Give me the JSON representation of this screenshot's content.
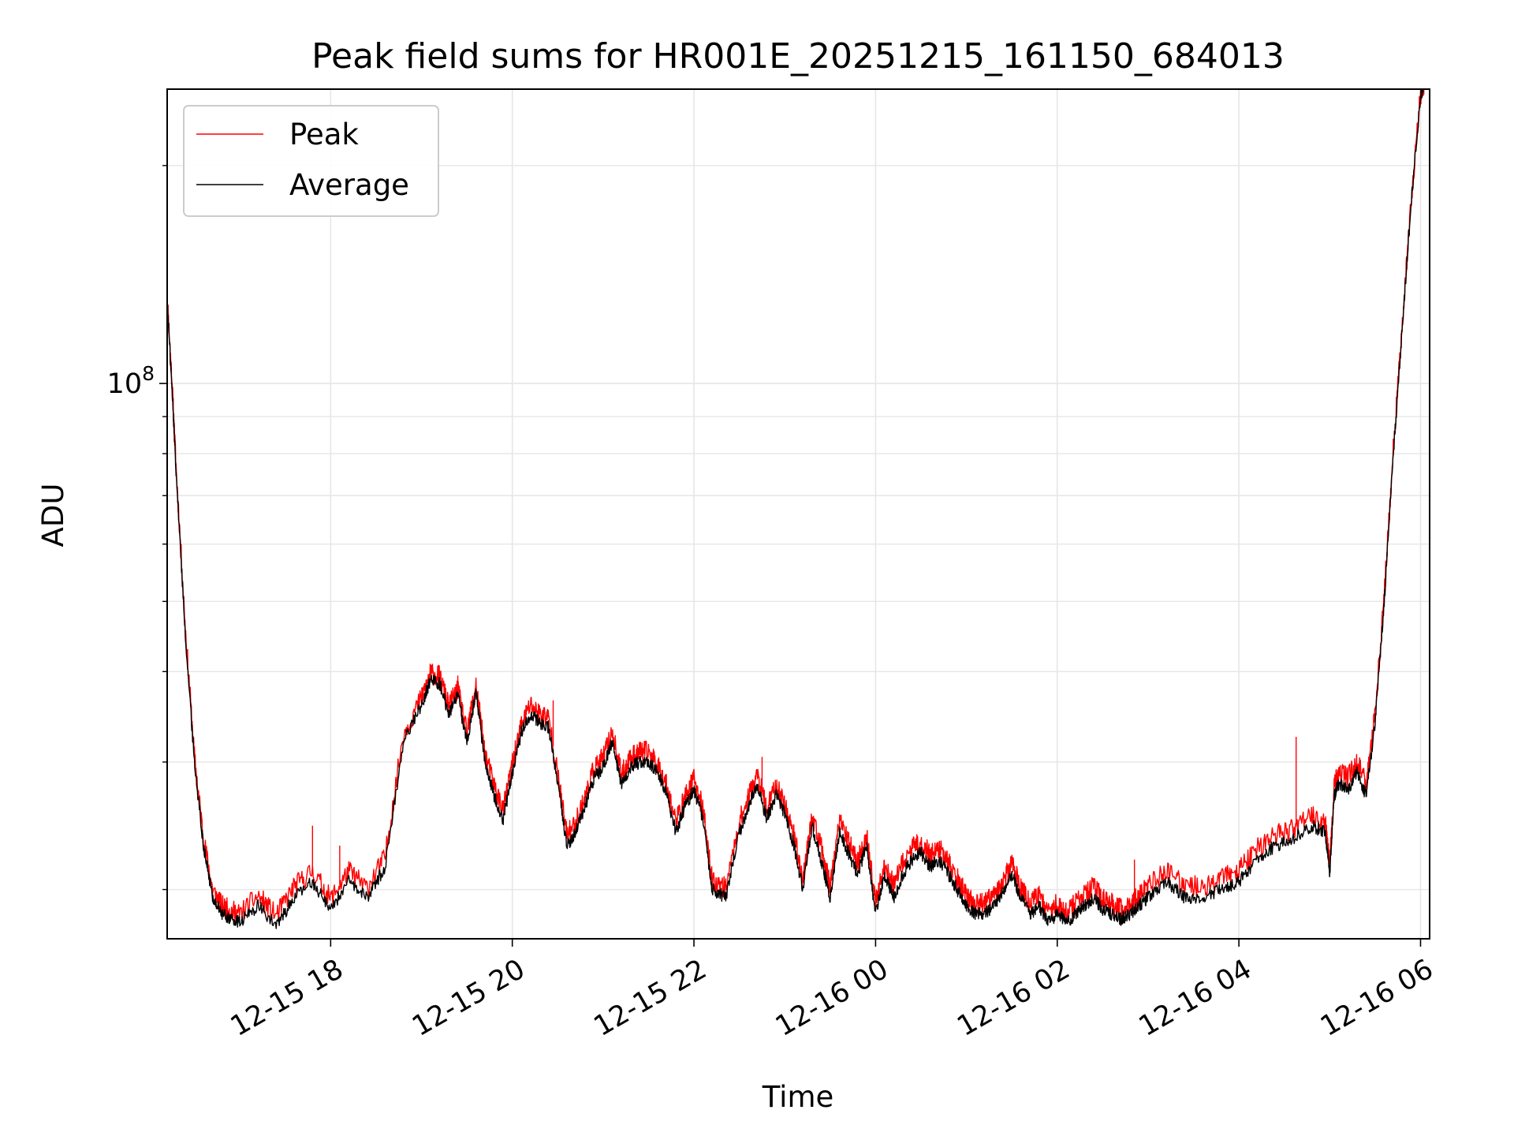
{
  "chart_data": {
    "type": "line",
    "title": "Peak field sums for HR001E_20251215_161150_684013",
    "xlabel": "Time",
    "ylabel": "ADU",
    "yscale": "log",
    "ylim": [
      17100000.0,
      255000000.0
    ],
    "xlim_hours": [
      16.2,
      30.1
    ],
    "x_ticks": [
      {
        "hour": 18,
        "label": "12-15 18"
      },
      {
        "hour": 20,
        "label": "12-15 20"
      },
      {
        "hour": 22,
        "label": "12-15 22"
      },
      {
        "hour": 24,
        "label": "12-16 00"
      },
      {
        "hour": 26,
        "label": "12-16 02"
      },
      {
        "hour": 28,
        "label": "12-16 04"
      },
      {
        "hour": 30,
        "label": "12-16 06"
      }
    ],
    "y_major_ticks": [
      {
        "value": 100000000.0,
        "label_base": "10",
        "label_exp": "8"
      }
    ],
    "y_minor_ticks": [
      20000000.0,
      30000000.0,
      40000000.0,
      50000000.0,
      60000000.0,
      70000000.0,
      80000000.0,
      90000000.0,
      200000000.0
    ],
    "grid": true,
    "legend": {
      "position": "upper-left",
      "entries": [
        "Peak",
        "Average"
      ]
    },
    "series_colors": {
      "Peak": "#ff0000",
      "Average": "#000000"
    },
    "series": [
      {
        "name": "Average",
        "x_hours": [
          16.2,
          16.25,
          16.3,
          16.4,
          16.5,
          16.6,
          16.7,
          16.8,
          16.9,
          17.0,
          17.2,
          17.4,
          17.6,
          17.8,
          18.0,
          18.2,
          18.4,
          18.6,
          18.8,
          19.0,
          19.1,
          19.2,
          19.3,
          19.4,
          19.5,
          19.6,
          19.7,
          19.8,
          19.9,
          20.0,
          20.1,
          20.2,
          20.3,
          20.4,
          20.5,
          20.6,
          20.7,
          20.8,
          20.9,
          21.0,
          21.1,
          21.2,
          21.3,
          21.4,
          21.5,
          21.6,
          21.7,
          21.8,
          21.9,
          22.0,
          22.1,
          22.2,
          22.35,
          22.5,
          22.6,
          22.7,
          22.8,
          22.9,
          23.0,
          23.1,
          23.2,
          23.3,
          23.4,
          23.5,
          23.6,
          23.7,
          23.8,
          23.9,
          24.0,
          24.1,
          24.2,
          24.3,
          24.4,
          24.5,
          24.6,
          24.7,
          24.8,
          24.9,
          25.0,
          25.1,
          25.2,
          25.3,
          25.4,
          25.5,
          25.6,
          25.7,
          25.8,
          25.9,
          26.0,
          26.1,
          26.2,
          26.3,
          26.4,
          26.5,
          26.6,
          26.7,
          26.8,
          26.9,
          27.0,
          27.2,
          27.4,
          27.6,
          27.8,
          28.0,
          28.2,
          28.4,
          28.6,
          28.8,
          28.95,
          29.0,
          29.05,
          29.1,
          29.2,
          29.3,
          29.4,
          29.5,
          29.6,
          29.7,
          29.8,
          29.9,
          30.0,
          30.05
        ],
        "values": [
          130000000.0,
          100000000.0,
          75000000.0,
          45000000.0,
          30000000.0,
          23000000.0,
          19500000.0,
          18500000.0,
          18200000.0,
          18000000.0,
          19000000.0,
          17800000.0,
          19500000.0,
          20500000.0,
          18800000.0,
          20500000.0,
          19500000.0,
          21500000.0,
          32000000.0,
          36000000.0,
          39000000.0,
          38500000.0,
          35000000.0,
          37000000.0,
          32000000.0,
          37500000.0,
          30000000.0,
          27000000.0,
          25000000.0,
          29000000.0,
          33000000.0,
          35000000.0,
          34000000.0,
          33500000.0,
          28000000.0,
          23000000.0,
          24000000.0,
          26000000.0,
          28500000.0,
          29500000.0,
          32000000.0,
          28000000.0,
          29500000.0,
          30000000.0,
          30000000.0,
          29000000.0,
          27000000.0,
          24000000.0,
          26000000.0,
          27500000.0,
          25000000.0,
          20000000.0,
          19500000.0,
          24000000.0,
          26000000.0,
          28000000.0,
          25000000.0,
          27000000.0,
          25500000.0,
          23000000.0,
          20000000.0,
          24500000.0,
          22000000.0,
          19500000.0,
          24000000.0,
          22500000.0,
          21000000.0,
          23000000.0,
          18500000.0,
          21000000.0,
          19500000.0,
          21000000.0,
          22000000.0,
          22500000.0,
          21500000.0,
          22000000.0,
          21000000.0,
          20000000.0,
          19000000.0,
          18500000.0,
          18500000.0,
          19000000.0,
          19800000.0,
          21000000.0,
          19500000.0,
          18500000.0,
          19000000.0,
          18000000.0,
          18500000.0,
          18000000.0,
          18500000.0,
          19000000.0,
          19500000.0,
          18800000.0,
          18500000.0,
          18200000.0,
          18500000.0,
          19000000.0,
          19500000.0,
          20500000.0,
          19500000.0,
          19500000.0,
          20000000.0,
          20500000.0,
          22000000.0,
          23000000.0,
          23500000.0,
          24500000.0,
          24000000.0,
          21000000.0,
          27000000.0,
          28000000.0,
          27500000.0,
          29000000.0,
          27000000.0,
          34000000.0,
          50000000.0,
          80000000.0,
          120000000.0,
          180000000.0,
          250000000.0,
          260000000.0
        ]
      },
      {
        "name": "Peak",
        "x_hours": [
          16.2,
          16.25,
          16.3,
          16.4,
          16.5,
          16.6,
          16.7,
          16.8,
          16.9,
          17.0,
          17.2,
          17.4,
          17.6,
          17.8,
          18.0,
          18.2,
          18.4,
          18.6,
          18.8,
          19.0,
          19.1,
          19.2,
          19.3,
          19.4,
          19.5,
          19.6,
          19.7,
          19.8,
          19.9,
          20.0,
          20.1,
          20.2,
          20.3,
          20.4,
          20.5,
          20.6,
          20.7,
          20.8,
          20.9,
          21.0,
          21.1,
          21.2,
          21.3,
          21.4,
          21.5,
          21.6,
          21.7,
          21.8,
          21.9,
          22.0,
          22.1,
          22.2,
          22.35,
          22.5,
          22.6,
          22.7,
          22.8,
          22.9,
          23.0,
          23.1,
          23.2,
          23.3,
          23.4,
          23.5,
          23.6,
          23.7,
          23.8,
          23.9,
          24.0,
          24.1,
          24.2,
          24.3,
          24.4,
          24.5,
          24.6,
          24.7,
          24.8,
          24.9,
          25.0,
          25.1,
          25.2,
          25.3,
          25.4,
          25.5,
          25.6,
          25.7,
          25.8,
          25.9,
          26.0,
          26.1,
          26.2,
          26.3,
          26.4,
          26.5,
          26.6,
          26.7,
          26.8,
          26.9,
          27.0,
          27.2,
          27.4,
          27.6,
          27.8,
          28.0,
          28.2,
          28.4,
          28.6,
          28.8,
          28.95,
          29.0,
          29.05,
          29.1,
          29.2,
          29.3,
          29.4,
          29.5,
          29.6,
          29.7,
          29.8,
          29.9,
          30.0,
          30.05
        ],
        "values": [
          132000000.0,
          102000000.0,
          76000000.0,
          46000000.0,
          30500000.0,
          23500000.0,
          20000000.0,
          19000000.0,
          18700000.0,
          18500000.0,
          19600000.0,
          18400000.0,
          20200000.0,
          21200000.0,
          19400000.0,
          21200000.0,
          20100000.0,
          22200000.0,
          32800000.0,
          36800000.0,
          39800000.0,
          39400000.0,
          35800000.0,
          37800000.0,
          32800000.0,
          38400000.0,
          30800000.0,
          27800000.0,
          25800000.0,
          29800000.0,
          33800000.0,
          36000000.0,
          35000000.0,
          34500000.0,
          28800000.0,
          23800000.0,
          24800000.0,
          26800000.0,
          29400000.0,
          30400000.0,
          33000000.0,
          28800000.0,
          30400000.0,
          31000000.0,
          31000000.0,
          29800000.0,
          27800000.0,
          24800000.0,
          26800000.0,
          28400000.0,
          25800000.0,
          20600000.0,
          20100000.0,
          24800000.0,
          26800000.0,
          28800000.0,
          25800000.0,
          27800000.0,
          26300000.0,
          23800000.0,
          20600000.0,
          25300000.0,
          22800000.0,
          20200000.0,
          24800000.0,
          23300000.0,
          21800000.0,
          23800000.0,
          19100000.0,
          21700000.0,
          20200000.0,
          21800000.0,
          22800000.0,
          23300000.0,
          22300000.0,
          22800000.0,
          21800000.0,
          20700000.0,
          19600000.0,
          19100000.0,
          19100000.0,
          19600000.0,
          20500000.0,
          21700000.0,
          20200000.0,
          19100000.0,
          19600000.0,
          18600000.0,
          19100000.0,
          18600000.0,
          19100000.0,
          19600000.0,
          20200000.0,
          19400000.0,
          19100000.0,
          18800000.0,
          19100000.0,
          19600000.0,
          20200000.0,
          21200000.0,
          20200000.0,
          20200000.0,
          20700000.0,
          21200000.0,
          22800000.0,
          23800000.0,
          24300000.0,
          25300000.0,
          24800000.0,
          21700000.0,
          27800000.0,
          29000000.0,
          28500000.0,
          30000000.0,
          28000000.0,
          35000000.0,
          51000000.0,
          81000000.0,
          121000000.0,
          181000000.0,
          251000000.0,
          261000000.0
        ]
      }
    ],
    "spikes": [
      {
        "series": "Peak",
        "x_hour": 17.8,
        "value": 24500000.0
      },
      {
        "series": "Peak",
        "x_hour": 18.1,
        "value": 23000000.0
      },
      {
        "series": "Peak",
        "x_hour": 19.4,
        "value": 39500000.0
      },
      {
        "series": "Peak",
        "x_hour": 20.45,
        "value": 36500000.0
      },
      {
        "series": "Peak",
        "x_hour": 22.75,
        "value": 30500000.0
      },
      {
        "series": "Peak",
        "x_hour": 26.85,
        "value": 22000000.0
      },
      {
        "series": "Peak",
        "x_hour": 28.63,
        "value": 32500000.0
      }
    ]
  }
}
